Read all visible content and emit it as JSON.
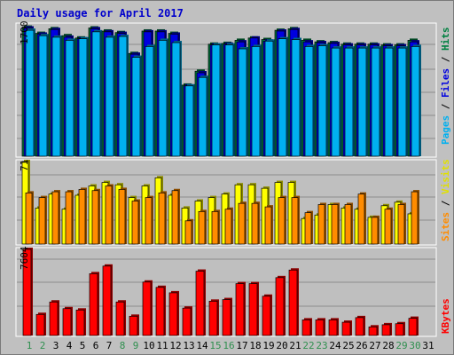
{
  "title": "Daily usage for April 2017",
  "colors": {
    "background": "#c0c0c0",
    "plot_background": "#bfbfbf",
    "gridline": "#8e8e8e",
    "title": "#0000cc",
    "hits": "#008040",
    "files": "#0000e0",
    "pages": "#00b0f0",
    "visits": "#ffff00",
    "sites": "#ff8c00",
    "kbytes": "#ff0000",
    "day_weekday": "#000000",
    "day_weekend": "#2f8f4f"
  },
  "chart_data": [
    {
      "type": "bar",
      "panel": "hits-files-pages",
      "ylabel_top_value": "1700",
      "ymax": 1700,
      "legend": [
        "Hits",
        "Files",
        "Pages"
      ],
      "categories": [
        "1",
        "2",
        "3",
        "4",
        "5",
        "6",
        "7",
        "8",
        "9",
        "10",
        "11",
        "12",
        "13",
        "14",
        "15",
        "16",
        "17",
        "18",
        "19",
        "20",
        "21",
        "22",
        "23",
        "24",
        "25",
        "26",
        "27",
        "28",
        "29",
        "30",
        "31"
      ],
      "series": [
        {
          "name": "Hits",
          "values": [
            1670,
            1590,
            1650,
            1560,
            1530,
            1660,
            1620,
            1600,
            1330,
            1620,
            1620,
            1590,
            920,
            1100,
            1450,
            1460,
            1500,
            1530,
            1510,
            1630,
            1650,
            1500,
            1480,
            1470,
            1450,
            1450,
            1450,
            1440,
            1440,
            1500,
            null
          ]
        },
        {
          "name": "Files",
          "values": [
            1660,
            1580,
            1640,
            1540,
            1520,
            1650,
            1610,
            1590,
            1320,
            1610,
            1610,
            1580,
            910,
            1080,
            1440,
            1450,
            1480,
            1530,
            1490,
            1620,
            1640,
            1480,
            1470,
            1460,
            1440,
            1440,
            1440,
            1430,
            1430,
            1480,
            null
          ]
        },
        {
          "name": "Pages",
          "values": [
            1630,
            1560,
            1540,
            1500,
            1520,
            1610,
            1540,
            1550,
            1280,
            1420,
            1500,
            1470,
            910,
            1020,
            1440,
            1440,
            1390,
            1420,
            1490,
            1520,
            1510,
            1420,
            1430,
            1400,
            1400,
            1400,
            1400,
            1400,
            1400,
            1420,
            null
          ]
        }
      ]
    },
    {
      "type": "bar",
      "panel": "visits-sites",
      "ylabel_top_value": "71",
      "ymax": 71,
      "legend": [
        "Visits",
        "Sites"
      ],
      "categories": [
        "1",
        "2",
        "3",
        "4",
        "5",
        "6",
        "7",
        "8",
        "9",
        "10",
        "11",
        "12",
        "13",
        "14",
        "15",
        "16",
        "17",
        "18",
        "19",
        "20",
        "21",
        "22",
        "23",
        "24",
        "25",
        "26",
        "27",
        "28",
        "29",
        "30",
        "31"
      ],
      "series": [
        {
          "name": "Visits",
          "values": [
            71,
            31,
            43,
            30,
            42,
            50,
            53,
            51,
            40,
            50,
            57,
            42,
            31,
            37,
            40,
            43,
            51,
            51,
            48,
            53,
            53,
            22,
            25,
            34,
            31,
            30,
            23,
            33,
            36,
            26,
            null
          ]
        },
        {
          "name": "Sites",
          "values": [
            44,
            40,
            45,
            45,
            47,
            46,
            50,
            47,
            37,
            40,
            44,
            46,
            20,
            28,
            28,
            30,
            35,
            35,
            32,
            40,
            40,
            27,
            34,
            34,
            34,
            43,
            23,
            30,
            34,
            45,
            null
          ]
        }
      ]
    },
    {
      "type": "bar",
      "panel": "kbytes",
      "ylabel_top_value": "7604",
      "ymax": 7604,
      "legend": [
        "KBytes"
      ],
      "categories": [
        "1",
        "2",
        "3",
        "4",
        "5",
        "6",
        "7",
        "8",
        "9",
        "10",
        "11",
        "12",
        "13",
        "14",
        "15",
        "16",
        "17",
        "18",
        "19",
        "20",
        "21",
        "22",
        "23",
        "24",
        "25",
        "26",
        "27",
        "28",
        "29",
        "30",
        "31"
      ],
      "series": [
        {
          "name": "KBytes",
          "values": [
            7604,
            1860,
            2960,
            2370,
            2250,
            5460,
            6130,
            2960,
            1700,
            4720,
            4250,
            3770,
            2420,
            5680,
            3030,
            3170,
            4580,
            4580,
            3470,
            5110,
            5780,
            1380,
            1380,
            1380,
            1170,
            1580,
            760,
            950,
            1040,
            1520,
            null
          ]
        }
      ]
    }
  ],
  "day_labels": [
    "1",
    "2",
    "3",
    "4",
    "5",
    "6",
    "7",
    "8",
    "9",
    "10",
    "11",
    "12",
    "13",
    "14",
    "15",
    "16",
    "17",
    "18",
    "19",
    "20",
    "21",
    "22",
    "23",
    "24",
    "25",
    "26",
    "27",
    "28",
    "29",
    "30",
    "31"
  ],
  "weekend_days": [
    "1",
    "2",
    "8",
    "9",
    "15",
    "16",
    "22",
    "23",
    "29",
    "30"
  ]
}
